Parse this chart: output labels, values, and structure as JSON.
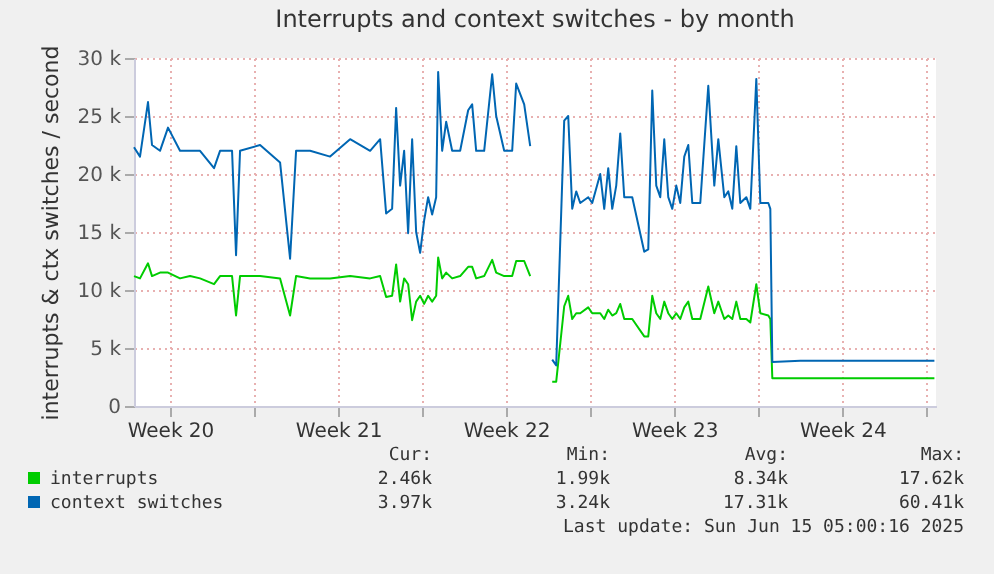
{
  "chart_data": {
    "type": "line",
    "title": "Interrupts and context switches - by month",
    "ylabel": "interrupts & ctx switches / second",
    "x": [
      "2025-05-12T20:00",
      "2025-05-13T02:00",
      "2025-05-13T10:00",
      "2025-05-13T14:00",
      "2025-05-13T22:00",
      "2025-05-14T06:00",
      "2025-05-14T18:00",
      "2025-05-15T04:00",
      "2025-05-15T14:00",
      "2025-05-16T04:00",
      "2025-05-16T10:00",
      "2025-05-16T22:00",
      "2025-05-17T02:00",
      "2025-05-17T06:00",
      "2025-05-18T02:00",
      "2025-05-18T22:00",
      "2025-05-19T08:00",
      "2025-05-19T14:00",
      "2025-05-20T04:00",
      "2025-05-21T00:00",
      "2025-05-21T20:00",
      "2025-05-22T16:00",
      "2025-05-23T02:00",
      "2025-05-23T08:00",
      "2025-05-23T14:00",
      "2025-05-23T18:00",
      "2025-05-23T22:00",
      "2025-05-24T02:00",
      "2025-05-24T06:00",
      "2025-05-24T10:00",
      "2025-05-24T14:00",
      "2025-05-24T18:00",
      "2025-05-24T22:00",
      "2025-05-25T02:00",
      "2025-05-25T06:00",
      "2025-05-25T10:00",
      "2025-05-25T12:00",
      "2025-05-25T16:00",
      "2025-05-25T20:00",
      "2025-05-26T02:00",
      "2025-05-26T10:00",
      "2025-05-26T18:00",
      "2025-05-26T22:00",
      "2025-05-27T02:00",
      "2025-05-27T10:00",
      "2025-05-27T18:00",
      "2025-05-27T22:00",
      "2025-05-28T06:00",
      "2025-05-28T14:00",
      "2025-05-28T18:00",
      "2025-05-29T02:00",
      "2025-05-29T08:00",
      "2025-05-29T18:00",
      "2025-05-30T06:00",
      "2025-05-30T10:00",
      "2025-05-30T18:00",
      "2025-05-30T22:00",
      "2025-05-31T02:00",
      "2025-05-31T06:00",
      "2025-05-31T10:00",
      "2025-05-31T18:00",
      "2025-05-31T22:00",
      "2025-06-01T06:00",
      "2025-06-01T10:00",
      "2025-06-01T14:00",
      "2025-06-01T18:00",
      "2025-06-01T22:00",
      "2025-06-02T02:00",
      "2025-06-02T06:00",
      "2025-06-02T14:00",
      "2025-06-03T02:00",
      "2025-06-03T06:00",
      "2025-06-03T10:00",
      "2025-06-03T14:00",
      "2025-06-03T18:00",
      "2025-06-03T22:00",
      "2025-06-04T02:00",
      "2025-06-04T06:00",
      "2025-06-04T10:00",
      "2025-06-04T14:00",
      "2025-06-04T18:00",
      "2025-06-04T22:00",
      "2025-06-05T02:00",
      "2025-06-05T10:00",
      "2025-06-05T18:00",
      "2025-06-06T00:00",
      "2025-06-06T04:00",
      "2025-06-06T10:00",
      "2025-06-06T14:00",
      "2025-06-06T18:00",
      "2025-06-06T22:00",
      "2025-06-07T02:00",
      "2025-06-07T08:00",
      "2025-06-07T12:00",
      "2025-06-07T18:00",
      "2025-06-07T22:00",
      "2025-06-08T06:00",
      "2025-06-08T08:00",
      "2025-06-08T10:00",
      "2025-06-09T14:00",
      "2025-06-11T06:00",
      "2025-06-12T22:00",
      "2025-06-15T04:00"
    ],
    "series": [
      {
        "name": "interrupts",
        "color": "#00cc00",
        "values": [
          11200,
          11000,
          12300,
          11200,
          11500,
          11500,
          11000,
          11200,
          11000,
          10500,
          11200,
          11200,
          7800,
          11200,
          11200,
          11000,
          7800,
          11200,
          11000,
          11000,
          11200,
          11000,
          11200,
          9400,
          9500,
          12200,
          9000,
          11000,
          10500,
          7400,
          9000,
          9500,
          8800,
          9500,
          9000,
          9500,
          12800,
          11000,
          11500,
          11000,
          11200,
          12000,
          12000,
          11000,
          11200,
          12600,
          11500,
          11200,
          11200,
          12500,
          12500,
          11200,
          null,
          2100,
          2100,
          8600,
          9500,
          7500,
          8000,
          8000,
          8500,
          8000,
          8000,
          7500,
          8300,
          7800,
          8000,
          8800,
          7500,
          7500,
          6000,
          6000,
          9500,
          8000,
          7500,
          9000,
          8000,
          7500,
          8000,
          7500,
          8500,
          9000,
          7500,
          7500,
          10300,
          8000,
          9000,
          7500,
          7800,
          7500,
          9000,
          7500,
          7500,
          7200,
          10500,
          8000,
          7800,
          7500,
          2400,
          2400,
          2400,
          2400,
          2400
        ]
      },
      {
        "name": "context switches",
        "color": "#0066b3",
        "values": [
          22300,
          21500,
          26200,
          22500,
          22000,
          24000,
          22000,
          22000,
          22000,
          20500,
          22000,
          22000,
          13000,
          22000,
          22500,
          21000,
          12700,
          22000,
          22000,
          21500,
          23000,
          22000,
          23000,
          16600,
          17000,
          25700,
          19000,
          22000,
          14900,
          23000,
          15000,
          13200,
          16000,
          18000,
          16500,
          18000,
          28800,
          22000,
          24500,
          22000,
          22000,
          25500,
          26000,
          22000,
          22000,
          28600,
          25000,
          22000,
          22000,
          27800,
          26000,
          22400,
          null,
          4000,
          3500,
          24600,
          25000,
          17000,
          18500,
          17500,
          18000,
          17500,
          20000,
          17000,
          20500,
          17000,
          19000,
          23500,
          18000,
          18000,
          13300,
          13500,
          27200,
          19000,
          18000,
          23000,
          18000,
          17000,
          19000,
          17500,
          21500,
          22500,
          17500,
          17500,
          27600,
          19000,
          23000,
          18000,
          18500,
          17000,
          22400,
          17500,
          18000,
          17000,
          28200,
          17500,
          17500,
          17000,
          3800,
          3900,
          3900,
          3900,
          3900
        ]
      }
    ],
    "xlim": [
      "2025-05-12T20:00",
      "2025-06-15T05:36"
    ],
    "xticks": [
      {
        "value": "2025-05-14T08:00",
        "label": "Week 20"
      },
      {
        "value": "2025-05-17T20:00",
        "label": null
      },
      {
        "value": "2025-05-21T08:00",
        "label": "Week 21"
      },
      {
        "value": "2025-05-24T20:00",
        "label": null
      },
      {
        "value": "2025-05-28T08:00",
        "label": "Week 22"
      },
      {
        "value": "2025-05-31T20:00",
        "label": null
      },
      {
        "value": "2025-06-04T08:00",
        "label": "Week 23"
      },
      {
        "value": "2025-06-07T20:00",
        "label": null
      },
      {
        "value": "2025-06-11T08:00",
        "label": "Week 24"
      },
      {
        "value": "2025-06-14T20:00",
        "label": null
      }
    ],
    "ylim": [
      0,
      30000
    ],
    "yticks": [
      0,
      {
        "value": 5000,
        "label": "5 k"
      },
      {
        "value": 10000,
        "label": "10 k"
      },
      {
        "value": 15000,
        "label": "15 k"
      },
      {
        "value": 20000,
        "label": "20 k"
      },
      {
        "value": 25000,
        "label": "25 k"
      },
      {
        "value": 30000,
        "label": "30 k"
      }
    ],
    "grid": true,
    "legend": "bottom",
    "annotations": [
      "Cur:",
      "Min:",
      "Avg:",
      "Max:",
      "2.46k",
      "1.99k",
      "8.34k",
      "17.62k",
      "3.97k",
      "3.24k",
      "17.31k",
      "60.41k",
      "Last update: Sun Jun 15 05:00:16 2025"
    ]
  }
}
